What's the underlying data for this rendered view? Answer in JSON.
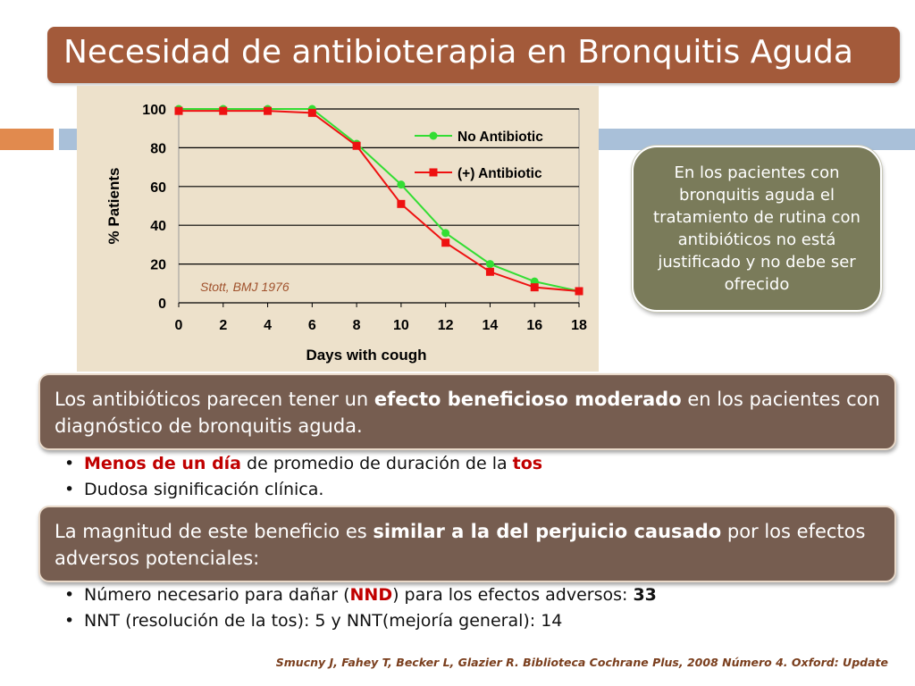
{
  "slide": {
    "title": "Necesidad de antibioterapia en Bronquitis Aguda",
    "callout": "En los pacientes con bronquitis aguda el tratamiento de rutina con antibióticos no está justificado y no debe ser ofrecido",
    "box1": {
      "before": "Los antibióticos parecen tener un ",
      "bold": "efecto beneficioso moderado",
      "after": " en los pacientes con diagnóstico de bronquitis aguda."
    },
    "bullets1": [
      {
        "red": "Menos de un día",
        "text": " de promedio de duración de la ",
        "red2": "tos"
      },
      {
        "text": "Dudosa significación clínica."
      }
    ],
    "box2": {
      "before": "La magnitud de este beneficio es ",
      "bold": "similar a la del perjuicio causado",
      "after": " por los efectos adversos potenciales:"
    },
    "bullets2": [
      {
        "text": "Número necesario para dañar (",
        "red": "NND",
        "text2": ") para los efectos adversos: ",
        "bold": "33"
      },
      {
        "text": "NNT (resolución de la tos): 5 y  NNT(mejoría general): 14"
      }
    ],
    "citation": "Smucny J, Fahey T, Becker L, Glazier R. Biblioteca Cochrane Plus, 2008 Número 4. Oxford: Update",
    "bullet_glyph": "•"
  },
  "colors": {
    "title_bg": "#a35a3a",
    "box_bg": "#765d50",
    "callout_bg": "#7a7b5a",
    "chart_bg": "#ede1cb",
    "series_no_antibiotic": "#33dd33",
    "series_antibiotic": "#ee1111",
    "accent_red": "#c00000"
  },
  "chart_data": {
    "type": "line",
    "xlabel": "Days with cough",
    "ylabel": "% Patients",
    "xlim": [
      0,
      18
    ],
    "ylim": [
      0,
      100
    ],
    "xticks": [
      "0",
      "2",
      "4",
      "6",
      "8",
      "10",
      "12",
      "14",
      "16",
      "18"
    ],
    "yticks": [
      "0",
      "20",
      "40",
      "60",
      "80",
      "100"
    ],
    "grid": "horizontal",
    "legend": "top-right",
    "annotation": "Stott, BMJ 1976",
    "x": [
      0,
      2,
      4,
      6,
      8,
      10,
      12,
      14,
      16,
      18
    ],
    "series": [
      {
        "name": "No Antibiotic",
        "marker": "circle",
        "values": [
          100,
          100,
          100,
          100,
          82,
          61,
          36,
          20,
          11,
          6
        ]
      },
      {
        "name": "(+) Antibiotic",
        "marker": "square",
        "values": [
          99,
          99,
          99,
          98,
          81,
          51,
          31,
          16,
          8,
          6
        ]
      }
    ]
  }
}
